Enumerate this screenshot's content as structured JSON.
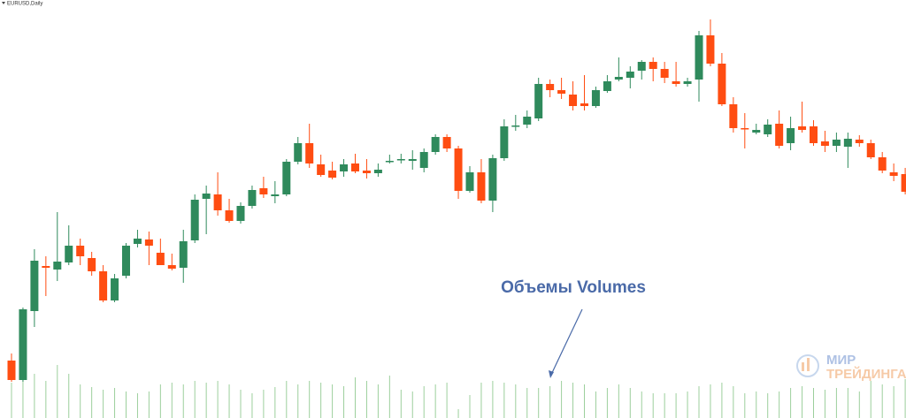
{
  "chart_data": {
    "type": "candlestick",
    "symbol_label": "EURUSD,Daily",
    "annotation": "Объемы Volumes",
    "watermark": [
      "МИР",
      "ТРЕЙДИНГА"
    ],
    "up_color": "#2f8a5c",
    "down_color": "#ff4d12",
    "volume_color": "#9ccf9c",
    "ylim": [
      27,
      500
    ],
    "volume_lim": [
      0,
      100
    ],
    "open": [
      92,
      70,
      148,
      199,
      195,
      203,
      222,
      208,
      193,
      160,
      188,
      224,
      229,
      214,
      200,
      197,
      228,
      275,
      280,
      262,
      250,
      267,
      287,
      278,
      280,
      317,
      338,
      314,
      307,
      306,
      315,
      307,
      304,
      317,
      319,
      318,
      310,
      328,
      345,
      332,
      284,
      305,
      273,
      321,
      357,
      359,
      366,
      405,
      398,
      393,
      383,
      380,
      397,
      410,
      412,
      420,
      430,
      422,
      408,
      405,
      410,
      460,
      428,
      382,
      355,
      350,
      348,
      360,
      338,
      357,
      357,
      340,
      335,
      334,
      342,
      338,
      322,
      305,
      303
    ],
    "high": [
      100,
      152,
      218,
      210,
      260,
      245,
      230,
      215,
      200,
      190,
      225,
      240,
      238,
      230,
      213,
      240,
      280,
      290,
      305,
      275,
      271,
      290,
      300,
      295,
      320,
      345,
      360,
      325,
      317,
      320,
      326,
      320,
      315,
      325,
      326,
      330,
      332,
      348,
      348,
      335,
      312,
      320,
      325,
      365,
      370,
      375,
      412,
      410,
      412,
      408,
      415,
      402,
      415,
      435,
      425,
      432,
      435,
      430,
      430,
      412,
      465,
      478,
      440,
      390,
      372,
      360,
      365,
      375,
      368,
      385,
      364,
      352,
      350,
      350,
      347,
      342,
      328,
      315,
      310
    ],
    "low": [
      68,
      68,
      130,
      165,
      182,
      200,
      200,
      188,
      158,
      158,
      185,
      220,
      200,
      200,
      194,
      180,
      225,
      235,
      256,
      248,
      247,
      264,
      276,
      270,
      278,
      314,
      310,
      300,
      297,
      300,
      304,
      298,
      300,
      315,
      315,
      308,
      305,
      325,
      328,
      275,
      282,
      270,
      260,
      318,
      352,
      355,
      363,
      390,
      388,
      375,
      375,
      378,
      395,
      408,
      400,
      410,
      408,
      406,
      402,
      402,
      385,
      425,
      380,
      350,
      332,
      348,
      345,
      332,
      330,
      350,
      335,
      328,
      328,
      310,
      334,
      320,
      304,
      295,
      280
    ],
    "close": [
      70,
      150,
      205,
      197,
      204,
      222,
      210,
      193,
      160,
      185,
      222,
      230,
      222,
      200,
      196,
      227,
      274,
      281,
      262,
      250,
      267,
      285,
      280,
      280,
      317,
      338,
      315,
      302,
      299,
      314,
      306,
      304,
      308,
      318,
      320,
      320,
      328,
      345,
      332,
      284,
      305,
      273,
      321,
      357,
      358,
      368,
      405,
      398,
      394,
      380,
      380,
      398,
      408,
      413,
      419,
      430,
      422,
      412,
      405,
      408,
      460,
      428,
      382,
      355,
      354,
      353,
      359,
      335,
      355,
      353,
      338,
      335,
      342,
      343,
      338,
      322,
      307,
      301,
      283
    ],
    "volume": [
      40,
      58,
      50,
      42,
      60,
      50,
      38,
      35,
      32,
      34,
      30,
      28,
      30,
      38,
      40,
      38,
      42,
      40,
      42,
      38,
      32,
      28,
      32,
      35,
      42,
      38,
      42,
      40,
      38,
      36,
      46,
      42,
      38,
      48,
      32,
      30,
      36,
      38,
      40,
      10,
      26,
      40,
      42,
      40,
      38,
      34,
      34,
      36,
      42,
      40,
      38,
      30,
      34,
      38,
      34,
      30,
      28,
      28,
      28,
      30,
      36,
      38,
      40,
      36,
      28,
      30,
      28,
      30,
      34,
      36,
      34,
      32,
      34,
      34,
      30,
      42,
      38,
      36,
      44
    ]
  }
}
